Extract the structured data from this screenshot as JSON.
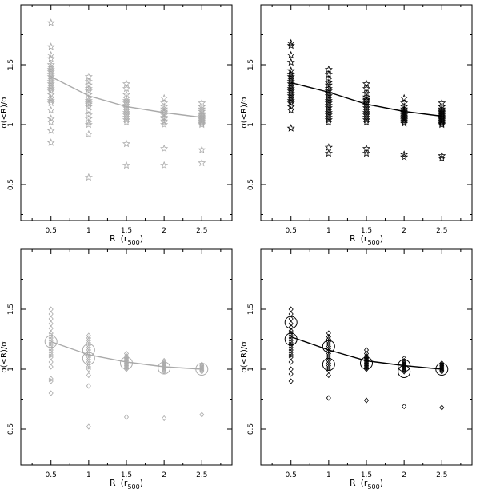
{
  "chart_data": [
    {
      "type": "scatter",
      "panel": "top-left",
      "marker": "star",
      "color": "#aaaaaa",
      "xlabel": "R",
      "xlabel_unit": "(r",
      "xlabel_sub": "500",
      "xlabel_close": ")",
      "ylabel": "σ(<R)/σ",
      "xlim": [
        0.1,
        2.9
      ],
      "ylim": [
        0.2,
        2.0
      ],
      "xticks": [
        "0.5",
        "1",
        "1.5",
        "2",
        "2.5"
      ],
      "yticks": [
        "0.5",
        "1",
        "1.5"
      ],
      "curve": {
        "x": [
          0.5,
          1.0,
          1.5,
          2.0,
          2.5
        ],
        "y": [
          1.4,
          1.24,
          1.15,
          1.1,
          1.06
        ]
      },
      "groups": [
        {
          "x": 0.5,
          "y": [
            1.85,
            1.65,
            1.58,
            1.55,
            1.5,
            1.48,
            1.46,
            1.44,
            1.42,
            1.4,
            1.38,
            1.36,
            1.34,
            1.32,
            1.3,
            1.28,
            1.25,
            1.22,
            1.2,
            1.18,
            1.12,
            1.05,
            1.02,
            0.95,
            0.85
          ]
        },
        {
          "x": 1.0,
          "y": [
            1.4,
            1.36,
            1.33,
            1.3,
            1.28,
            1.25,
            1.22,
            1.2,
            1.18,
            1.17,
            1.15,
            1.12,
            1.08,
            1.05,
            1.02,
            1.0,
            0.92,
            0.56
          ]
        },
        {
          "x": 1.5,
          "y": [
            1.34,
            1.3,
            1.25,
            1.22,
            1.2,
            1.18,
            1.16,
            1.14,
            1.12,
            1.1,
            1.08,
            1.06,
            1.04,
            1.02,
            0.84,
            0.66
          ]
        },
        {
          "x": 2.0,
          "y": [
            1.22,
            1.18,
            1.15,
            1.13,
            1.11,
            1.1,
            1.08,
            1.06,
            1.05,
            1.03,
            1.02,
            1.0,
            0.8,
            0.66
          ]
        },
        {
          "x": 2.5,
          "y": [
            1.18,
            1.15,
            1.13,
            1.11,
            1.09,
            1.08,
            1.07,
            1.06,
            1.05,
            1.04,
            1.03,
            1.02,
            1.01,
            1.0,
            0.79,
            0.68
          ]
        }
      ]
    },
    {
      "type": "scatter",
      "panel": "top-right",
      "marker": "star",
      "color": "#000000",
      "xlabel": "R",
      "xlabel_unit": "(r",
      "xlabel_sub": "500",
      "xlabel_close": ")",
      "ylabel": "σ(<R)/σ",
      "xlim": [
        0.1,
        2.9
      ],
      "ylim": [
        0.2,
        2.0
      ],
      "xticks": [
        "0.5",
        "1",
        "1.5",
        "2",
        "2.5"
      ],
      "yticks": [
        "0.5",
        "1",
        "1.5"
      ],
      "curve": {
        "x": [
          0.5,
          1.0,
          1.5,
          2.0,
          2.5
        ],
        "y": [
          1.35,
          1.27,
          1.17,
          1.11,
          1.07
        ]
      },
      "groups": [
        {
          "x": 0.5,
          "y": [
            1.68,
            1.66,
            1.58,
            1.52,
            1.45,
            1.42,
            1.4,
            1.38,
            1.36,
            1.34,
            1.32,
            1.3,
            1.28,
            1.26,
            1.24,
            1.22,
            1.2,
            1.18,
            1.15,
            1.12,
            0.97
          ]
        },
        {
          "x": 1.0,
          "y": [
            1.46,
            1.42,
            1.38,
            1.35,
            1.33,
            1.3,
            1.28,
            1.26,
            1.24,
            1.22,
            1.2,
            1.18,
            1.16,
            1.14,
            1.12,
            1.1,
            1.08,
            1.06,
            1.04,
            1.02,
            0.81,
            0.76
          ]
        },
        {
          "x": 1.5,
          "y": [
            1.34,
            1.3,
            1.26,
            1.23,
            1.21,
            1.2,
            1.18,
            1.16,
            1.14,
            1.12,
            1.1,
            1.08,
            1.06,
            1.04,
            1.02,
            0.8,
            0.76
          ]
        },
        {
          "x": 2.0,
          "y": [
            1.22,
            1.18,
            1.15,
            1.13,
            1.12,
            1.11,
            1.1,
            1.09,
            1.08,
            1.07,
            1.06,
            1.05,
            1.04,
            1.03,
            1.02,
            1.01,
            0.75,
            0.73
          ]
        },
        {
          "x": 2.5,
          "y": [
            1.18,
            1.15,
            1.13,
            1.12,
            1.11,
            1.1,
            1.09,
            1.08,
            1.07,
            1.06,
            1.05,
            1.04,
            1.03,
            1.02,
            1.01,
            1.0,
            0.74,
            0.72
          ]
        }
      ]
    },
    {
      "type": "scatter",
      "panel": "bottom-left",
      "marker": "diamond",
      "color": "#aaaaaa",
      "xlabel": "R",
      "xlabel_unit": "(r",
      "xlabel_sub": "500",
      "xlabel_close": ")",
      "ylabel": "σ(<R)/σ",
      "xlim": [
        0.1,
        2.9
      ],
      "ylim": [
        0.2,
        2.0
      ],
      "xticks": [
        "0.5",
        "1",
        "1.5",
        "2",
        "2.5"
      ],
      "yticks": [
        "0.5",
        "1",
        "1.5"
      ],
      "curve": {
        "x": [
          0.5,
          1.0,
          1.5,
          2.0,
          2.5
        ],
        "y": [
          1.23,
          1.12,
          1.06,
          1.02,
          1.0
        ]
      },
      "circles": [
        {
          "x": 0.5,
          "y": 1.23
        },
        {
          "x": 1.0,
          "y": 1.16
        },
        {
          "x": 1.0,
          "y": 1.09
        },
        {
          "x": 1.5,
          "y": 1.05
        },
        {
          "x": 2.0,
          "y": 1.01
        },
        {
          "x": 2.5,
          "y": 1.0
        }
      ],
      "groups": [
        {
          "x": 0.5,
          "y": [
            1.5,
            1.46,
            1.42,
            1.38,
            1.34,
            1.3,
            1.28,
            1.26,
            1.24,
            1.22,
            1.2,
            1.18,
            1.16,
            1.14,
            1.12,
            1.1,
            1.06,
            1.02,
            0.92,
            0.9,
            0.8
          ]
        },
        {
          "x": 1.0,
          "y": [
            1.28,
            1.26,
            1.24,
            1.22,
            1.2,
            1.18,
            1.16,
            1.14,
            1.12,
            1.1,
            1.08,
            1.06,
            1.04,
            1.02,
            1.0,
            0.95,
            0.86,
            0.52
          ]
        },
        {
          "x": 1.5,
          "y": [
            1.13,
            1.11,
            1.1,
            1.09,
            1.08,
            1.07,
            1.06,
            1.05,
            1.04,
            1.03,
            1.02,
            1.01,
            1.0,
            0.6
          ]
        },
        {
          "x": 2.0,
          "y": [
            1.07,
            1.06,
            1.05,
            1.04,
            1.03,
            1.02,
            1.01,
            1.0,
            0.99,
            0.98,
            0.59
          ]
        },
        {
          "x": 2.5,
          "y": [
            1.04,
            1.03,
            1.02,
            1.01,
            1.0,
            0.99,
            0.98,
            0.62
          ]
        }
      ]
    },
    {
      "type": "scatter",
      "panel": "bottom-right",
      "marker": "diamond",
      "color": "#000000",
      "xlabel": "R",
      "xlabel_unit": "(r",
      "xlabel_sub": "500",
      "xlabel_close": ")",
      "ylabel": "σ(<R)/σ",
      "xlim": [
        0.1,
        2.9
      ],
      "ylim": [
        0.2,
        2.0
      ],
      "xticks": [
        "0.5",
        "1",
        "1.5",
        "2",
        "2.5"
      ],
      "yticks": [
        "0.5",
        "1",
        "1.5"
      ],
      "curve": {
        "x": [
          0.5,
          1.0,
          1.5,
          2.0,
          2.5
        ],
        "y": [
          1.27,
          1.16,
          1.07,
          1.03,
          1.0
        ]
      },
      "circles": [
        {
          "x": 0.5,
          "y": 1.39
        },
        {
          "x": 0.5,
          "y": 1.25
        },
        {
          "x": 1.0,
          "y": 1.19
        },
        {
          "x": 1.0,
          "y": 1.04
        },
        {
          "x": 1.5,
          "y": 1.05
        },
        {
          "x": 2.0,
          "y": 1.03
        },
        {
          "x": 2.0,
          "y": 0.98
        },
        {
          "x": 2.5,
          "y": 1.0
        }
      ],
      "groups": [
        {
          "x": 0.5,
          "y": [
            1.5,
            1.46,
            1.42,
            1.38,
            1.35,
            1.32,
            1.3,
            1.28,
            1.26,
            1.24,
            1.22,
            1.2,
            1.18,
            1.16,
            1.14,
            1.12,
            1.1,
            1.06,
            1.0,
            0.96,
            0.9
          ]
        },
        {
          "x": 1.0,
          "y": [
            1.3,
            1.27,
            1.25,
            1.23,
            1.21,
            1.19,
            1.17,
            1.15,
            1.13,
            1.11,
            1.09,
            1.07,
            1.05,
            1.03,
            1.01,
            0.99,
            0.95,
            0.76
          ]
        },
        {
          "x": 1.5,
          "y": [
            1.16,
            1.13,
            1.11,
            1.1,
            1.09,
            1.08,
            1.07,
            1.06,
            1.05,
            1.04,
            1.03,
            1.02,
            1.01,
            1.0,
            0.74
          ]
        },
        {
          "x": 2.0,
          "y": [
            1.09,
            1.07,
            1.06,
            1.05,
            1.04,
            1.03,
            1.02,
            1.01,
            1.0,
            0.99,
            0.98,
            0.69
          ]
        },
        {
          "x": 2.5,
          "y": [
            1.05,
            1.04,
            1.03,
            1.02,
            1.01,
            1.0,
            0.99,
            0.98,
            0.68
          ]
        }
      ]
    }
  ]
}
